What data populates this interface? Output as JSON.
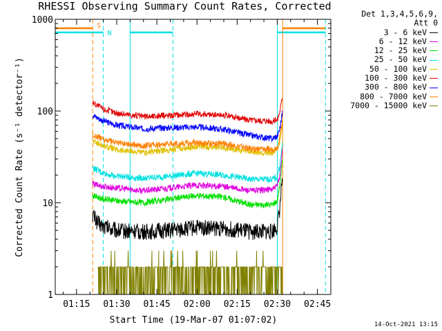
{
  "chart_data": {
    "type": "line",
    "title": "RHESSI Observing Summary Count Rates, Corrected",
    "xlabel": "Start Time (19-Mar-07 01:07:02)",
    "ylabel": "Corrected Count Rate (s⁻¹ detector⁻¹)",
    "y_scale": "log",
    "ylim": [
      1,
      1000
    ],
    "yticks": [
      {
        "value": 1,
        "label": "1"
      },
      {
        "value": 10,
        "label": "10"
      },
      {
        "value": 100,
        "label": "100"
      },
      {
        "value": 1000,
        "label": "1000"
      }
    ],
    "xlim": [
      "01:07:02",
      "02:50:00"
    ],
    "xticks": [
      {
        "time": "01:15",
        "label": "01:15"
      },
      {
        "time": "01:30",
        "label": "01:30"
      },
      {
        "time": "01:45",
        "label": "01:45"
      },
      {
        "time": "02:00",
        "label": "02:00"
      },
      {
        "time": "02:15",
        "label": "02:15"
      },
      {
        "time": "02:30",
        "label": "02:30"
      },
      {
        "time": "02:45",
        "label": "02:45"
      }
    ],
    "legend_header": [
      "Det 1,3,4,5,6,9,",
      "Att 0"
    ],
    "legend_position": "right",
    "series": [
      {
        "name": "3 - 6 keV",
        "color": "#000000",
        "x": [
          "01:21",
          "01:23",
          "01:25",
          "01:30",
          "01:40",
          "01:50",
          "02:00",
          "02:10",
          "02:20",
          "02:28",
          "02:30",
          "02:31",
          "02:32"
        ],
        "y": [
          7.5,
          6.0,
          5.5,
          5.0,
          4.8,
          5.0,
          5.4,
          5.2,
          4.8,
          4.8,
          5.5,
          9,
          22
        ]
      },
      {
        "name": "6 - 12 keV",
        "color": "#e000e0",
        "x": [
          "01:21",
          "01:25",
          "01:30",
          "01:40",
          "01:50",
          "02:00",
          "02:10",
          "02:20",
          "02:28",
          "02:30",
          "02:31",
          "02:32"
        ],
        "y": [
          16,
          15,
          14.5,
          13.5,
          14.5,
          15.5,
          15,
          13.5,
          14,
          15,
          20,
          40
        ]
      },
      {
        "name": "12 - 25 keV",
        "color": "#00e000",
        "x": [
          "01:21",
          "01:25",
          "01:30",
          "01:40",
          "01:50",
          "02:00",
          "02:10",
          "02:20",
          "02:28",
          "02:30",
          "02:31",
          "02:32"
        ],
        "y": [
          12,
          11,
          10.5,
          10,
          11,
          12,
          11.5,
          9.5,
          9.5,
          10.5,
          16,
          32
        ]
      },
      {
        "name": "25 - 50 keV",
        "color": "#00e0e0",
        "x": [
          "01:21",
          "01:25",
          "01:30",
          "01:40",
          "01:50",
          "02:00",
          "02:10",
          "02:20",
          "02:28",
          "02:30",
          "02:31",
          "02:32"
        ],
        "y": [
          24,
          21,
          19.5,
          18.5,
          19.5,
          21,
          20,
          18,
          18,
          19,
          26,
          45
        ]
      },
      {
        "name": "50 - 100 keV",
        "color": "#e0c000",
        "x": [
          "01:21",
          "01:25",
          "01:30",
          "01:40",
          "01:50",
          "02:00",
          "02:10",
          "02:20",
          "02:28",
          "02:30",
          "02:31",
          "02:32"
        ],
        "y": [
          47,
          42,
          38,
          35,
          38,
          41,
          40,
          36,
          35,
          37,
          48,
          80
        ]
      },
      {
        "name": "100 - 300 keV",
        "color": "#e00000",
        "x": [
          "01:21",
          "01:25",
          "01:30",
          "01:40",
          "01:50",
          "02:00",
          "02:10",
          "02:20",
          "02:28",
          "02:30",
          "02:31",
          "02:32"
        ],
        "y": [
          125,
          105,
          95,
          87,
          90,
          93,
          90,
          80,
          78,
          80,
          100,
          150
        ]
      },
      {
        "name": "300 - 800 keV",
        "color": "#0000ff",
        "x": [
          "01:21",
          "01:25",
          "01:30",
          "01:40",
          "01:50",
          "02:00",
          "02:10",
          "02:20",
          "02:28",
          "02:30",
          "02:31",
          "02:32"
        ],
        "y": [
          90,
          78,
          70,
          64,
          66,
          67,
          63,
          54,
          50,
          53,
          65,
          100
        ]
      },
      {
        "name": "800 - 7000 keV",
        "color": "#ff8000",
        "x": [
          "01:21",
          "01:25",
          "01:30",
          "01:40",
          "01:50",
          "02:00",
          "02:10",
          "02:20",
          "02:28",
          "02:30",
          "02:31",
          "02:32"
        ],
        "y": [
          55,
          49,
          45,
          42,
          44,
          45,
          44,
          39,
          38,
          40,
          52,
          85
        ]
      },
      {
        "name": "7000 - 15000 keV",
        "color": "#808000",
        "x": [
          "01:23",
          "01:35",
          "01:45",
          "02:00",
          "02:15",
          "02:28",
          "02:30",
          "02:31",
          "02:32"
        ],
        "y": [
          2,
          2,
          2,
          2,
          2,
          2,
          2,
          3,
          5
        ]
      }
    ],
    "flags": [
      {
        "label": "S",
        "color": "#ff8000",
        "segments": [
          [
            "01:07:02",
            "01:21"
          ],
          [
            "02:32",
            "02:48"
          ]
        ]
      },
      {
        "label": "N",
        "color": "#00e0e0",
        "segments": [
          [
            "01:07:02",
            "01:25"
          ],
          [
            "01:35",
            "01:51"
          ],
          [
            "02:30",
            "02:48"
          ]
        ]
      }
    ],
    "vertical_lines": [
      {
        "time": "01:21",
        "color": "#ff8000",
        "style": "dashed"
      },
      {
        "time": "01:25",
        "color": "#00e0e0",
        "style": "dashed"
      },
      {
        "time": "01:35",
        "color": "#00e0e0",
        "style": "solid"
      },
      {
        "time": "01:51",
        "color": "#00e0e0",
        "style": "dashed"
      },
      {
        "time": "02:30",
        "color": "#00e0e0",
        "style": "solid"
      },
      {
        "time": "02:32",
        "color": "#ff8000",
        "style": "solid"
      },
      {
        "time": "02:48",
        "color": "#00e0e0",
        "style": "dashed"
      }
    ]
  },
  "footer_timestamp": "14-Oct-2021 13:15"
}
